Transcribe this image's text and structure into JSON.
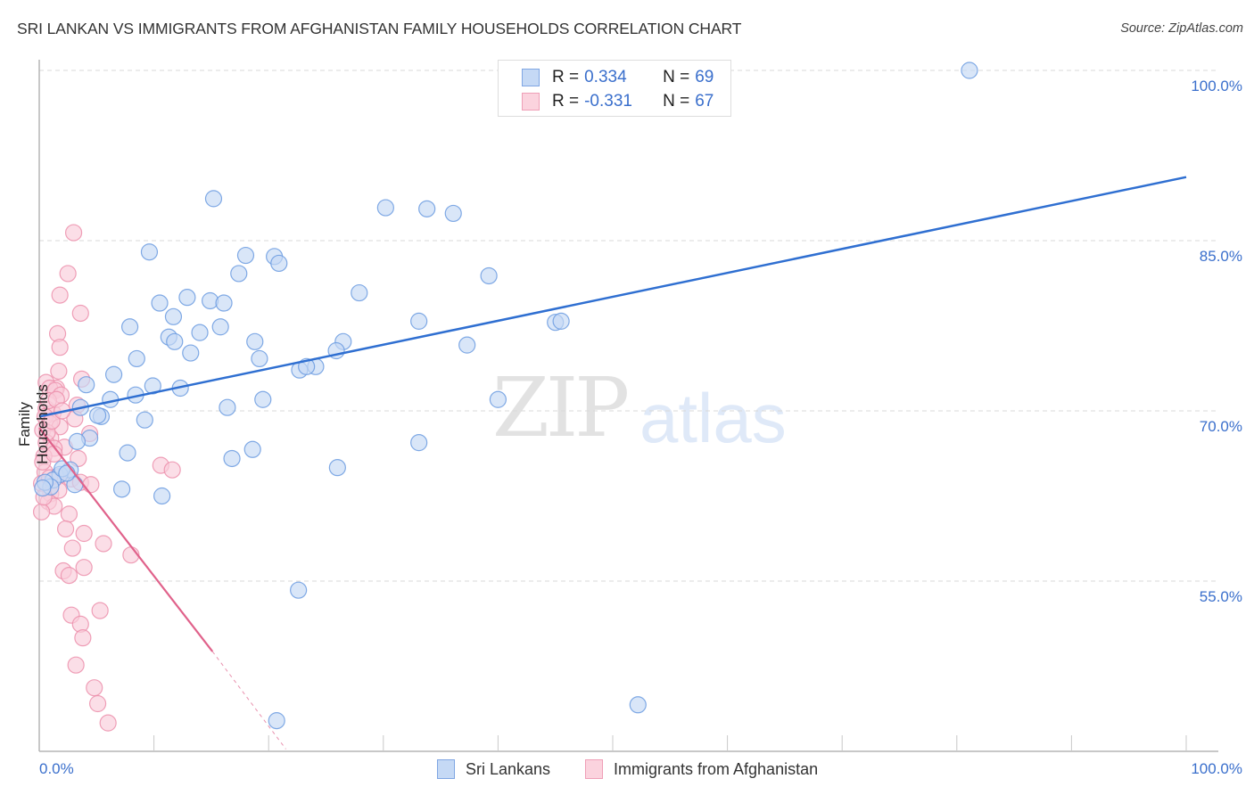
{
  "header": {
    "title": "SRI LANKAN VS IMMIGRANTS FROM AFGHANISTAN FAMILY HOUSEHOLDS CORRELATION CHART",
    "source": "Source: ZipAtlas.com"
  },
  "watermark": {
    "zip": "ZIP",
    "atlas": "atlas"
  },
  "legend": {
    "rows": [
      {
        "r_label": "R = ",
        "r_value": "0.334",
        "n_label": "N = ",
        "n_value": "69",
        "color": "#a9c6f0"
      },
      {
        "r_label": "R = ",
        "r_value": "-0.331",
        "n_label": "N = ",
        "n_value": "67",
        "color": "#f7b9cb"
      }
    ]
  },
  "axes": {
    "ylabel": "Family Households",
    "yticks": [
      "100.0%",
      "85.0%",
      "70.0%",
      "55.0%"
    ],
    "xticks": [
      "0.0%",
      "100.0%"
    ]
  },
  "bottom_legend": {
    "items": [
      {
        "label": "Sri Lankans",
        "color": "#a9c6f0"
      },
      {
        "label": "Immigrants from Afghanistan",
        "color": "#f7b9cb"
      }
    ]
  },
  "colors": {
    "blue": "#2f6fd1",
    "blue_fill": "#c5d9f5",
    "pink": "#e0628b",
    "pink_fill": "#f9cdda",
    "tick_label": "#3a6fcc"
  },
  "chart_data": {
    "type": "scatter",
    "title": "SRI LANKAN VS IMMIGRANTS FROM AFGHANISTAN FAMILY HOUSEHOLDS CORRELATION CHART",
    "xlabel": "",
    "ylabel": "Family Households",
    "xlim": [
      0,
      100
    ],
    "ylim": [
      40,
      101
    ],
    "x_tick_labels": [
      "0.0%",
      "100.0%"
    ],
    "y_tick_labels": [
      "55.0%",
      "70.0%",
      "85.0%",
      "100.0%"
    ],
    "grid": "horizontal dashed",
    "legend_position": "top-center and bottom",
    "series": [
      {
        "name": "Sri Lankans",
        "R": 0.334,
        "N": 69,
        "trend": {
          "x": [
            0,
            100
          ],
          "y": [
            69.5,
            90.6
          ]
        },
        "points": [
          [
            81.1,
            100.0
          ],
          [
            15.2,
            88.7
          ],
          [
            30.2,
            87.9
          ],
          [
            33.8,
            87.8
          ],
          [
            36.1,
            87.4
          ],
          [
            9.6,
            84.0
          ],
          [
            18.0,
            83.7
          ],
          [
            20.5,
            83.6
          ],
          [
            20.9,
            83.0
          ],
          [
            17.4,
            82.1
          ],
          [
            39.2,
            81.9
          ],
          [
            27.9,
            80.4
          ],
          [
            12.9,
            80.0
          ],
          [
            14.9,
            79.7
          ],
          [
            10.5,
            79.5
          ],
          [
            16.1,
            79.5
          ],
          [
            11.7,
            78.3
          ],
          [
            33.1,
            77.9
          ],
          [
            45.0,
            77.8
          ],
          [
            45.5,
            77.9
          ],
          [
            7.9,
            77.4
          ],
          [
            15.8,
            77.4
          ],
          [
            14.0,
            76.9
          ],
          [
            11.3,
            76.5
          ],
          [
            11.8,
            76.1
          ],
          [
            26.5,
            76.1
          ],
          [
            18.8,
            76.1
          ],
          [
            25.9,
            75.3
          ],
          [
            37.3,
            75.8
          ],
          [
            13.2,
            75.1
          ],
          [
            8.5,
            74.6
          ],
          [
            19.2,
            74.6
          ],
          [
            24.1,
            73.9
          ],
          [
            22.7,
            73.6
          ],
          [
            23.3,
            73.9
          ],
          [
            6.5,
            73.2
          ],
          [
            4.1,
            72.3
          ],
          [
            12.3,
            72.0
          ],
          [
            8.4,
            71.4
          ],
          [
            9.9,
            72.2
          ],
          [
            6.2,
            71.0
          ],
          [
            19.5,
            71.0
          ],
          [
            40.0,
            71.0
          ],
          [
            16.4,
            70.3
          ],
          [
            3.6,
            70.3
          ],
          [
            5.4,
            69.5
          ],
          [
            5.1,
            69.6
          ],
          [
            9.2,
            69.2
          ],
          [
            4.4,
            67.6
          ],
          [
            3.3,
            67.3
          ],
          [
            33.1,
            67.2
          ],
          [
            18.6,
            66.6
          ],
          [
            7.7,
            66.3
          ],
          [
            16.8,
            65.8
          ],
          [
            26.0,
            65.0
          ],
          [
            2.7,
            64.8
          ],
          [
            1.8,
            64.4
          ],
          [
            1.2,
            63.9
          ],
          [
            1.0,
            63.3
          ],
          [
            3.1,
            63.5
          ],
          [
            0.5,
            63.7
          ],
          [
            7.2,
            63.1
          ],
          [
            10.7,
            62.5
          ],
          [
            0.3,
            63.2
          ],
          [
            22.6,
            54.2
          ],
          [
            52.2,
            44.1
          ],
          [
            20.7,
            42.7
          ],
          [
            2.0,
            64.9
          ],
          [
            2.4,
            64.5
          ]
        ]
      },
      {
        "name": "Immigrants from Afghanistan",
        "R": -0.331,
        "N": 67,
        "trend": {
          "x": [
            0,
            15.1
          ],
          "y": [
            68.5,
            48.8
          ],
          "dashed_extension": {
            "x": [
              15.1,
              21.5
            ],
            "y": [
              48.8,
              40.2
            ]
          }
        },
        "points": [
          [
            3.0,
            85.7
          ],
          [
            2.5,
            82.1
          ],
          [
            1.8,
            80.2
          ],
          [
            3.6,
            78.6
          ],
          [
            1.6,
            76.8
          ],
          [
            1.8,
            75.6
          ],
          [
            1.7,
            73.5
          ],
          [
            3.7,
            72.8
          ],
          [
            0.6,
            72.5
          ],
          [
            1.5,
            72.0
          ],
          [
            0.9,
            72.0
          ],
          [
            1.4,
            71.8
          ],
          [
            1.9,
            71.4
          ],
          [
            3.3,
            70.5
          ],
          [
            0.6,
            70.2
          ],
          [
            1.2,
            69.8
          ],
          [
            0.5,
            69.5
          ],
          [
            3.1,
            69.3
          ],
          [
            0.9,
            68.9
          ],
          [
            1.8,
            68.6
          ],
          [
            0.3,
            68.3
          ],
          [
            4.4,
            68.0
          ],
          [
            1.0,
            67.6
          ],
          [
            0.6,
            67.2
          ],
          [
            2.2,
            66.8
          ],
          [
            1.3,
            66.7
          ],
          [
            0.4,
            66.0
          ],
          [
            10.6,
            65.2
          ],
          [
            11.6,
            64.8
          ],
          [
            0.5,
            64.6
          ],
          [
            1.6,
            64.2
          ],
          [
            2.8,
            64.0
          ],
          [
            3.6,
            63.7
          ],
          [
            0.2,
            63.6
          ],
          [
            4.5,
            63.5
          ],
          [
            1.0,
            62.7
          ],
          [
            0.8,
            62.0
          ],
          [
            1.3,
            61.6
          ],
          [
            0.2,
            61.1
          ],
          [
            2.6,
            60.9
          ],
          [
            2.3,
            59.6
          ],
          [
            3.9,
            59.2
          ],
          [
            5.6,
            58.3
          ],
          [
            2.9,
            57.9
          ],
          [
            8.0,
            57.3
          ],
          [
            3.9,
            56.2
          ],
          [
            2.1,
            55.9
          ],
          [
            2.6,
            55.5
          ],
          [
            5.3,
            52.4
          ],
          [
            2.8,
            52.0
          ],
          [
            3.6,
            51.2
          ],
          [
            3.8,
            50.0
          ],
          [
            3.2,
            47.6
          ],
          [
            4.8,
            45.6
          ],
          [
            5.1,
            44.2
          ],
          [
            6.0,
            42.5
          ],
          [
            0.8,
            70.9
          ],
          [
            1.5,
            71.0
          ],
          [
            0.3,
            65.5
          ],
          [
            0.7,
            68.1
          ],
          [
            1.1,
            69.1
          ],
          [
            2.0,
            70.0
          ],
          [
            0.4,
            62.4
          ],
          [
            1.7,
            63.0
          ],
          [
            3.4,
            65.8
          ],
          [
            0.9,
            64.1
          ],
          [
            1.3,
            66.2
          ]
        ]
      }
    ]
  }
}
